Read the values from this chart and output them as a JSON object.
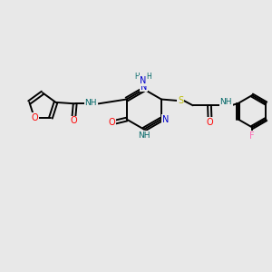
{
  "bg_color": "#e8e8e8",
  "bond_color": "#000000",
  "atom_colors": {
    "O": "#ff0000",
    "N": "#0000cc",
    "S": "#bbbb00",
    "F": "#ff69b4",
    "NH": "#006666",
    "C": "#000000"
  },
  "figsize": [
    3.0,
    3.0
  ],
  "dpi": 100,
  "lw": 1.4,
  "fs": 7.0
}
